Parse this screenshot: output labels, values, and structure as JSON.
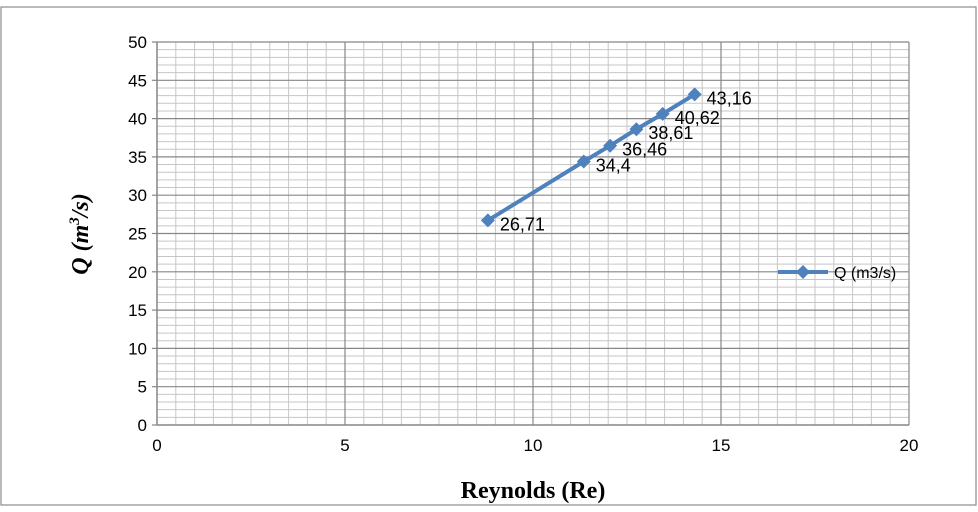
{
  "chart_data": {
    "type": "line",
    "xlabel": "Reynolds (Re)",
    "ylabel": "Q (m3/s)",
    "ylabel_parts": {
      "var": "Q",
      "open": "(m",
      "sup": "3",
      "close": "/s)"
    },
    "xlim": [
      0,
      20
    ],
    "ylim": [
      0,
      50
    ],
    "x_ticks": [
      0,
      5,
      10,
      15,
      20
    ],
    "y_ticks": [
      0,
      5,
      10,
      15,
      20,
      25,
      30,
      35,
      40,
      45,
      50
    ],
    "x_tick_labels": [
      "0",
      "5",
      "10",
      "15",
      "20"
    ],
    "y_tick_labels": [
      "0",
      "5",
      "10",
      "15",
      "20",
      "25",
      "30",
      "35",
      "40",
      "45",
      "50"
    ],
    "grid": true,
    "legend_position": "right",
    "series": [
      {
        "name": "Q (m3/s)",
        "color": "#4f81bd",
        "marker": "diamond",
        "x": [
          8.8,
          11.35,
          12.05,
          12.75,
          13.45,
          14.3
        ],
        "y": [
          26.71,
          34.4,
          36.46,
          38.61,
          40.62,
          43.16
        ],
        "labels": [
          "26,71",
          "34,4",
          "36,46",
          "38,61",
          "40,62",
          "43,16"
        ]
      }
    ]
  }
}
